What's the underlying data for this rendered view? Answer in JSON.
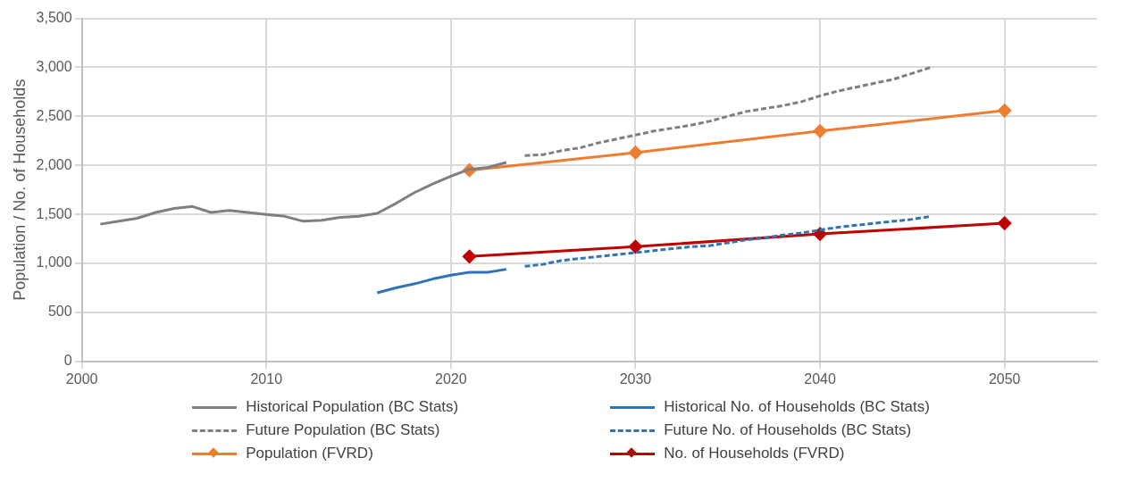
{
  "chart_data": {
    "type": "line",
    "ylabel": "Population / No. of Households",
    "xlim": [
      2000,
      2055
    ],
    "xticks": [
      2000,
      2010,
      2020,
      2030,
      2040,
      2050
    ],
    "ylim": [
      0,
      3500
    ],
    "yticks": [
      0,
      500,
      {
        "value": 1000,
        "label": "1,000"
      },
      {
        "value": 1500,
        "label": "1,500"
      },
      {
        "value": 2000,
        "label": "2,000"
      },
      {
        "value": 2500,
        "label": "2,500"
      },
      {
        "value": 3000,
        "label": "3,000"
      },
      {
        "value": 3500,
        "label": "3,500"
      }
    ],
    "grid": true,
    "legend": "bottom",
    "series": [
      {
        "name": "Historical Population (BC Stats)",
        "color": "#7f7f7f",
        "line_style": "solid",
        "marker": "none",
        "x": [
          2001,
          2002,
          2003,
          2004,
          2005,
          2006,
          2007,
          2008,
          2009,
          2010,
          2011,
          2012,
          2013,
          2014,
          2015,
          2016,
          2017,
          2018,
          2019,
          2020,
          2021,
          2022,
          2023
        ],
        "values": [
          1400,
          1430,
          1460,
          1520,
          1560,
          1580,
          1520,
          1540,
          1520,
          1500,
          1480,
          1430,
          1440,
          1470,
          1480,
          1510,
          1610,
          1720,
          1810,
          1890,
          1960,
          1980,
          2030
        ]
      },
      {
        "name": "Historical No. of Households (BC Stats)",
        "color": "#2e75b6",
        "line_style": "solid",
        "marker": "none",
        "x": [
          2016,
          2017,
          2018,
          2019,
          2020,
          2021,
          2022,
          2023
        ],
        "values": [
          700,
          750,
          790,
          840,
          880,
          910,
          910,
          940
        ]
      },
      {
        "name": "Future Population (BC Stats)",
        "color": "#7f7f7f",
        "line_style": "dashed",
        "marker": "none",
        "x": [
          2024,
          2025,
          2026,
          2027,
          2028,
          2029,
          2030,
          2031,
          2032,
          2033,
          2034,
          2035,
          2036,
          2037,
          2038,
          2039,
          2040,
          2041,
          2042,
          2043,
          2044,
          2045,
          2046
        ],
        "values": [
          2100,
          2110,
          2150,
          2180,
          2230,
          2270,
          2310,
          2350,
          2380,
          2410,
          2450,
          2500,
          2550,
          2580,
          2610,
          2650,
          2710,
          2760,
          2800,
          2840,
          2880,
          2940,
          3000
        ]
      },
      {
        "name": "Future No. of Households (BC Stats)",
        "color": "#2e75b6",
        "line_style": "dashed",
        "marker": "none",
        "x": [
          2024,
          2025,
          2026,
          2027,
          2028,
          2029,
          2030,
          2031,
          2032,
          2033,
          2034,
          2035,
          2036,
          2037,
          2038,
          2039,
          2040,
          2041,
          2042,
          2043,
          2044,
          2045,
          2046
        ],
        "values": [
          970,
          990,
          1030,
          1050,
          1070,
          1090,
          1110,
          1130,
          1150,
          1170,
          1180,
          1210,
          1240,
          1260,
          1290,
          1310,
          1340,
          1370,
          1390,
          1410,
          1430,
          1450,
          1480
        ]
      },
      {
        "name": "Population (FVRD)",
        "color": "#ed7d31",
        "line_style": "solid",
        "marker": "diamond",
        "x": [
          2021,
          2030,
          2040,
          2050
        ],
        "values": [
          1950,
          2130,
          2350,
          2560
        ]
      },
      {
        "name": "No. of Households (FVRD)",
        "color": "#c00000",
        "line_style": "solid",
        "marker": "diamond",
        "x": [
          2021,
          2030,
          2040,
          2050
        ],
        "values": [
          1070,
          1170,
          1300,
          1410
        ]
      }
    ]
  }
}
